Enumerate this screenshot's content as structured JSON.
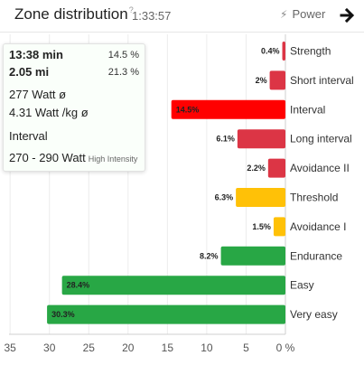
{
  "header": {
    "title": "Zone distribution",
    "help_mark": "?",
    "duration": "1:33:57",
    "metric_label": "Power"
  },
  "tooltip": {
    "time": "13:38 min",
    "time_pct": "14.5 %",
    "distance": "2.05 mi",
    "distance_pct": "21.3 %",
    "avg_power": "277 Watt ø",
    "avg_wkg": "4.31 Watt /kg ø",
    "zone": "Interval",
    "range": "270 - 290 Watt",
    "range_note": "High Intensity"
  },
  "chart_data": {
    "type": "bar",
    "orientation": "horizontal",
    "x_reversed": true,
    "xlim": [
      0,
      35
    ],
    "x_ticks": [
      "35",
      "30",
      "25",
      "20",
      "15",
      "10",
      "5",
      "0 %"
    ],
    "categories": [
      "Strength",
      "Short interval",
      "Interval",
      "Long interval",
      "Avoidance II",
      "Threshold",
      "Avoidance I",
      "Endurance",
      "Easy",
      "Very easy"
    ],
    "values": [
      0.4,
      2,
      14.5,
      6.1,
      2.2,
      6.3,
      1.5,
      8.2,
      28.4,
      30.3
    ],
    "data_labels": [
      "0.4%",
      "2%",
      "14.5%",
      "6.1%",
      "2.2%",
      "6.3%",
      "1.5%",
      "8.2%",
      "28.4%",
      "30.3%"
    ],
    "colors": [
      "#dc3545",
      "#dc3545",
      "#ff0000",
      "#dc3545",
      "#dc3545",
      "#ffc107",
      "#ffc107",
      "#28a745",
      "#28a745",
      "#28a745"
    ],
    "highlighted_category": "Interval"
  }
}
